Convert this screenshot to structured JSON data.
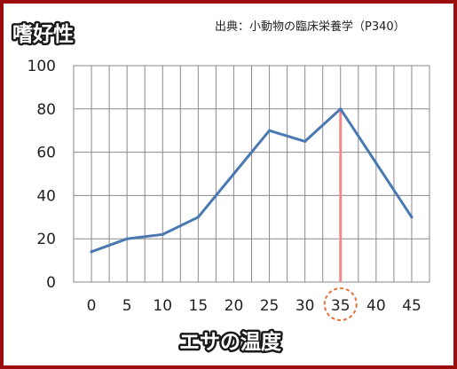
{
  "chart_data": {
    "type": "line",
    "title": "嗜好性",
    "source": "出典：小動物の臨床栄養学（P340）",
    "xlabel": "エサの温度",
    "ylabel": "",
    "x": [
      0,
      5,
      10,
      15,
      20,
      25,
      30,
      35,
      40,
      45
    ],
    "x_tick_labels": [
      "0",
      "5",
      "10",
      "15",
      "20",
      "25",
      "30",
      "35",
      "40",
      "45"
    ],
    "y_tick_labels": [
      "0",
      "20",
      "40",
      "60",
      "80",
      "100"
    ],
    "series": [
      {
        "values": [
          14,
          20,
          22,
          30,
          50,
          70,
          65,
          80,
          55,
          30
        ]
      }
    ],
    "ylim": [
      0,
      100
    ],
    "xlim": [
      -2.5,
      47.5
    ],
    "grid": true,
    "highlight": {
      "x": 35,
      "value": 80,
      "color": "#f08a8a",
      "marker_color": "#e8733a"
    },
    "line_color": "#4a78b0",
    "grid_color": "#8a8a8a"
  }
}
